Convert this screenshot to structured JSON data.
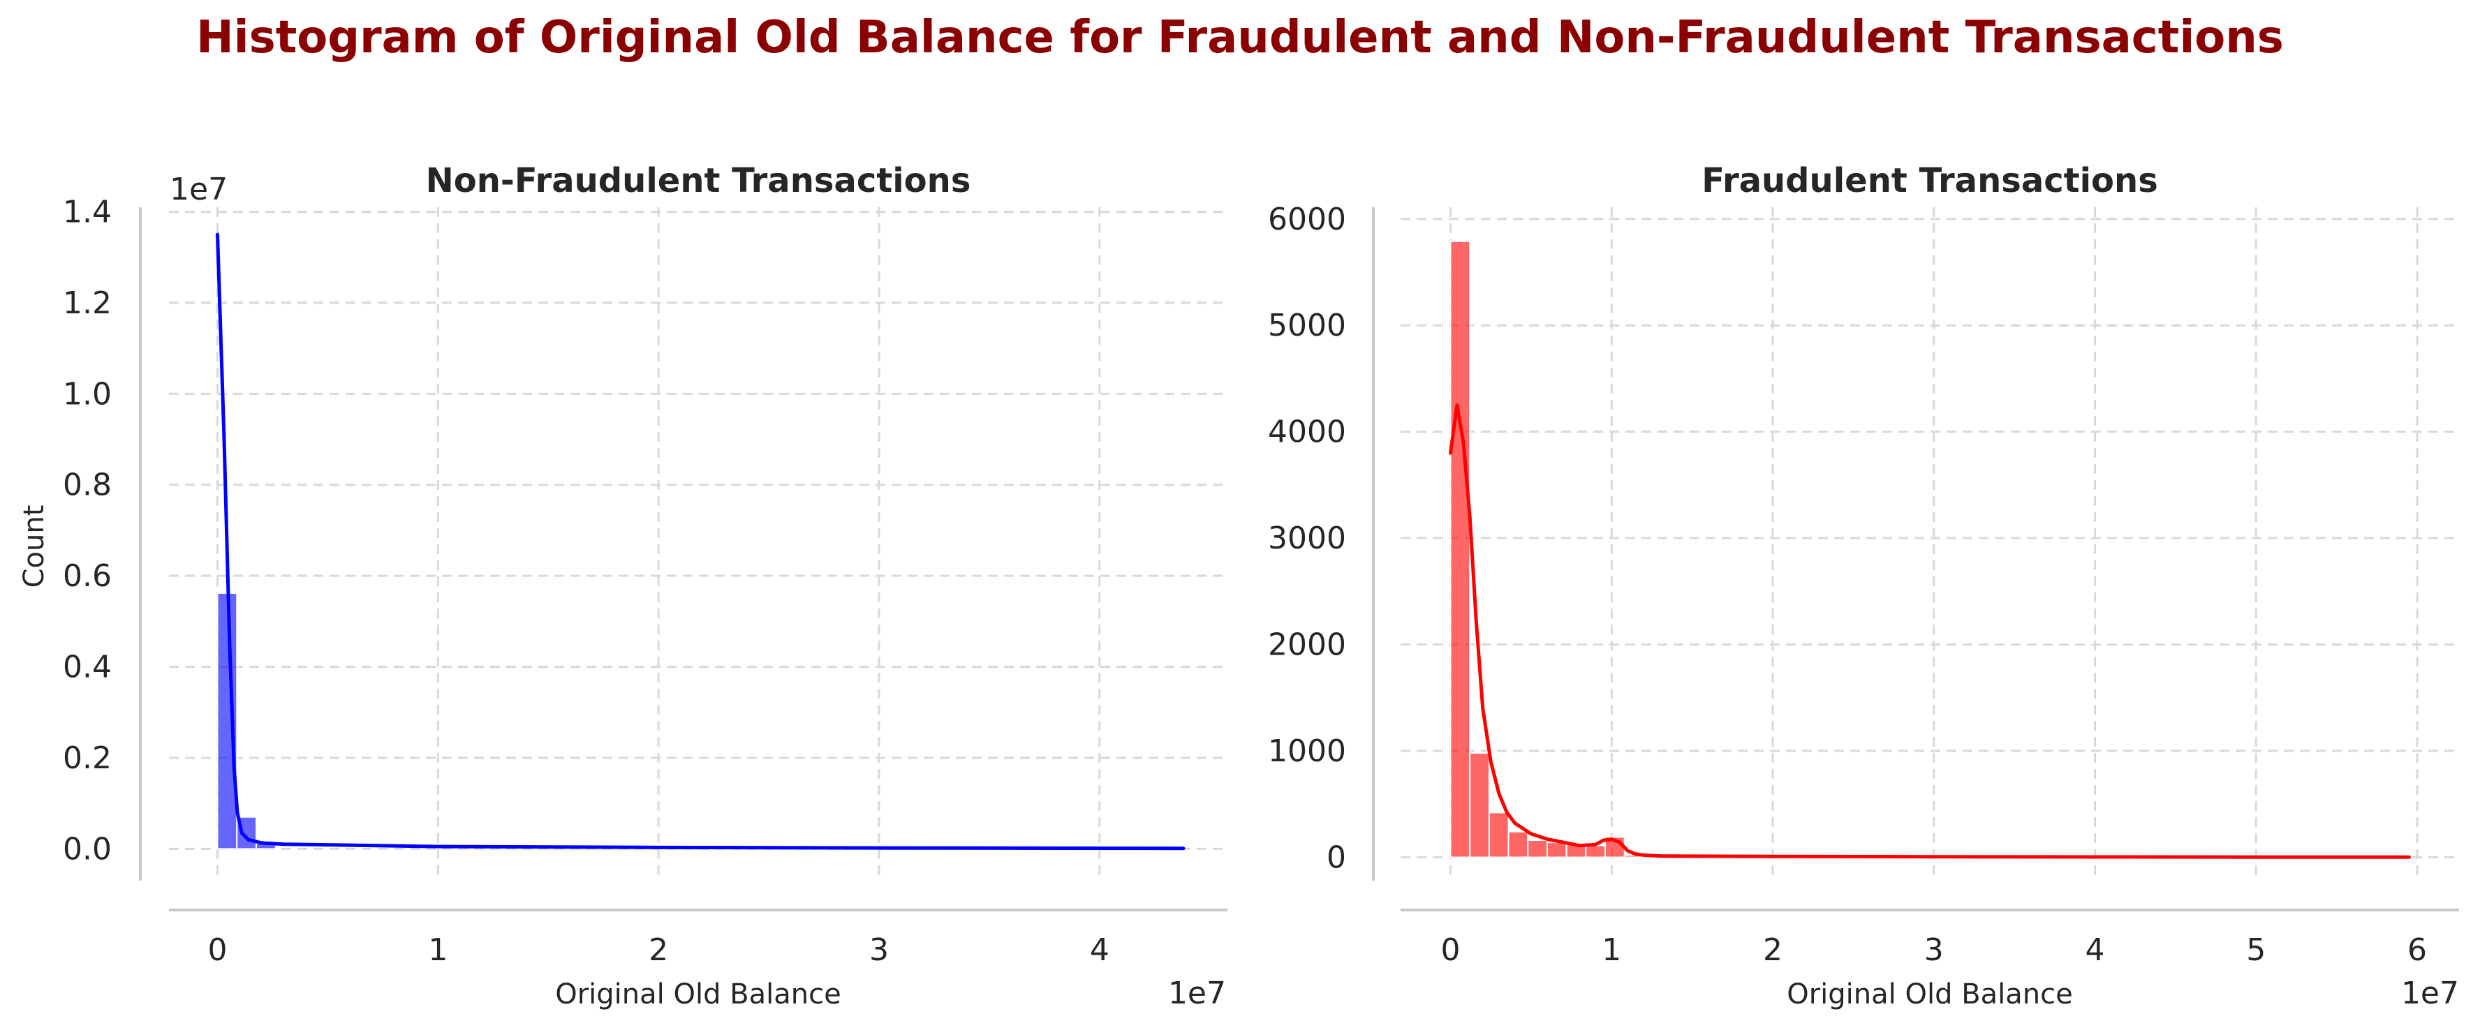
{
  "suptitle": "Histogram of Original Old Balance for Fraudulent and Non-Fraudulent Transactions",
  "chart_data": [
    {
      "type": "histogram",
      "title": "Non-Fraudulent Transactions",
      "xlabel": "Original Old Balance",
      "ylabel": "Count",
      "x_offset_label": "1e7",
      "y_offset_label": "1e7",
      "xlim": [
        -0.22,
        4.58
      ],
      "ylim": [
        -0.07,
        1.41
      ],
      "xticks": [
        0,
        1,
        2,
        3,
        4
      ],
      "xtick_labels": [
        "0",
        "1",
        "2",
        "3",
        "4"
      ],
      "yticks": [
        0.0,
        0.2,
        0.4,
        0.6,
        0.8,
        1.0,
        1.2,
        1.4
      ],
      "ytick_labels": [
        "0.0",
        "0.2",
        "0.4",
        "0.6",
        "0.8",
        "1.0",
        "1.2",
        "1.4"
      ],
      "grid": true,
      "bar_color": "#0000ff",
      "kde_color": "#0000ff",
      "bins": [
        {
          "x0": 0.0,
          "x1": 0.088,
          "count": 0.562
        },
        {
          "x0": 0.088,
          "x1": 0.176,
          "count": 0.07
        },
        {
          "x0": 0.176,
          "x1": 0.264,
          "count": 0.012
        }
      ],
      "kde_x": [
        0.0,
        0.03,
        0.055,
        0.075,
        0.09,
        0.11,
        0.14,
        0.2,
        0.3,
        0.6,
        1.0,
        2.0,
        3.0,
        4.38
      ],
      "kde_y": [
        1.35,
        0.9,
        0.45,
        0.18,
        0.08,
        0.035,
        0.02,
        0.013,
        0.01,
        0.008,
        0.005,
        0.003,
        0.002,
        0.001
      ]
    },
    {
      "type": "histogram",
      "title": "Fraudulent Transactions",
      "xlabel": "Original Old Balance",
      "ylabel": "",
      "x_offset_label": "1e7",
      "y_offset_label": "",
      "xlim": [
        -0.31,
        6.26
      ],
      "ylim": [
        -220,
        6110
      ],
      "xticks": [
        0,
        1,
        2,
        3,
        4,
        5,
        6
      ],
      "xtick_labels": [
        "0",
        "1",
        "2",
        "3",
        "4",
        "5",
        "6"
      ],
      "yticks": [
        0,
        1000,
        2000,
        3000,
        4000,
        5000,
        6000
      ],
      "ytick_labels": [
        "0",
        "1000",
        "2000",
        "3000",
        "4000",
        "5000",
        "6000"
      ],
      "grid": true,
      "bar_color": "#ff0000",
      "kde_color": "#ff0000",
      "bins": [
        {
          "x0": 0.0,
          "x1": 0.12,
          "count": 5790
        },
        {
          "x0": 0.12,
          "x1": 0.24,
          "count": 980
        },
        {
          "x0": 0.24,
          "x1": 0.36,
          "count": 420
        },
        {
          "x0": 0.36,
          "x1": 0.48,
          "count": 240
        },
        {
          "x0": 0.48,
          "x1": 0.6,
          "count": 160
        },
        {
          "x0": 0.6,
          "x1": 0.72,
          "count": 140
        },
        {
          "x0": 0.72,
          "x1": 0.84,
          "count": 120
        },
        {
          "x0": 0.84,
          "x1": 0.96,
          "count": 110
        },
        {
          "x0": 0.96,
          "x1": 1.08,
          "count": 190
        },
        {
          "x0": 1.08,
          "x1": 1.2,
          "count": 20
        },
        {
          "x0": 1.2,
          "x1": 1.32,
          "count": 10
        }
      ],
      "kde_x": [
        0.0,
        0.04,
        0.08,
        0.12,
        0.16,
        0.2,
        0.25,
        0.3,
        0.35,
        0.4,
        0.5,
        0.6,
        0.7,
        0.8,
        0.9,
        0.95,
        1.0,
        1.05,
        1.1,
        1.15,
        1.2,
        1.3,
        1.5,
        2.0,
        3.0,
        4.0,
        5.0,
        5.95
      ],
      "kde_y": [
        3800,
        4250,
        3900,
        3200,
        2200,
        1400,
        900,
        600,
        420,
        320,
        220,
        170,
        140,
        110,
        120,
        160,
        170,
        140,
        60,
        30,
        20,
        12,
        10,
        8,
        5,
        3,
        2,
        1
      ]
    }
  ]
}
